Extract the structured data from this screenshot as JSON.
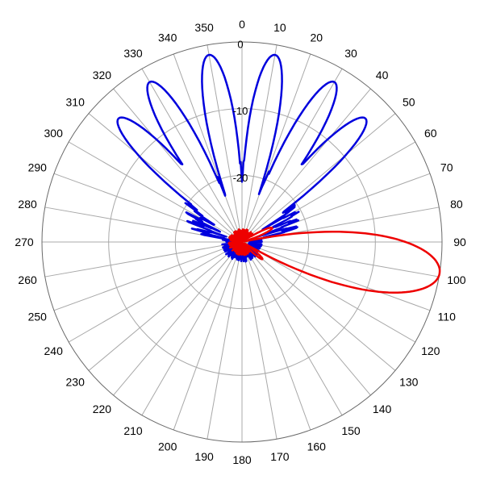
{
  "chart_data": {
    "type": "polar-line",
    "angle_unit": "degrees",
    "angle_zero": "top",
    "angle_direction": "clockwise",
    "angle_ticks": [
      0,
      10,
      20,
      30,
      40,
      50,
      60,
      70,
      80,
      90,
      100,
      110,
      120,
      130,
      140,
      150,
      160,
      170,
      180,
      190,
      200,
      210,
      220,
      230,
      240,
      250,
      260,
      270,
      280,
      290,
      300,
      310,
      320,
      330,
      340,
      350
    ],
    "radial_ticks": [
      0,
      -10,
      -20
    ],
    "radial_tick_labels": [
      "0",
      "-10",
      "-20"
    ],
    "rlim": [
      -30,
      0
    ],
    "grid": true,
    "series": [
      {
        "color": "#0000dd",
        "lobe_peaks": [
          {
            "angle": 350,
            "value": -1.5
          },
          {
            "angle": 10,
            "value": -1.5
          },
          {
            "angle": 330,
            "value": -2.3
          },
          {
            "angle": 30,
            "value": -2.3
          },
          {
            "angle": 315,
            "value": -3.8
          },
          {
            "angle": 45,
            "value": -3.8
          }
        ],
        "sidelobe_level": -19.5
      },
      {
        "color": "#ee0000",
        "lobe_peaks": [
          {
            "angle": 99,
            "value": 0
          }
        ],
        "beamwidth": 28,
        "sidelobes": [
          {
            "angle": 65,
            "value": -25
          },
          {
            "angle": 130,
            "value": -26
          }
        ],
        "sidelobe_level": -28
      }
    ]
  }
}
